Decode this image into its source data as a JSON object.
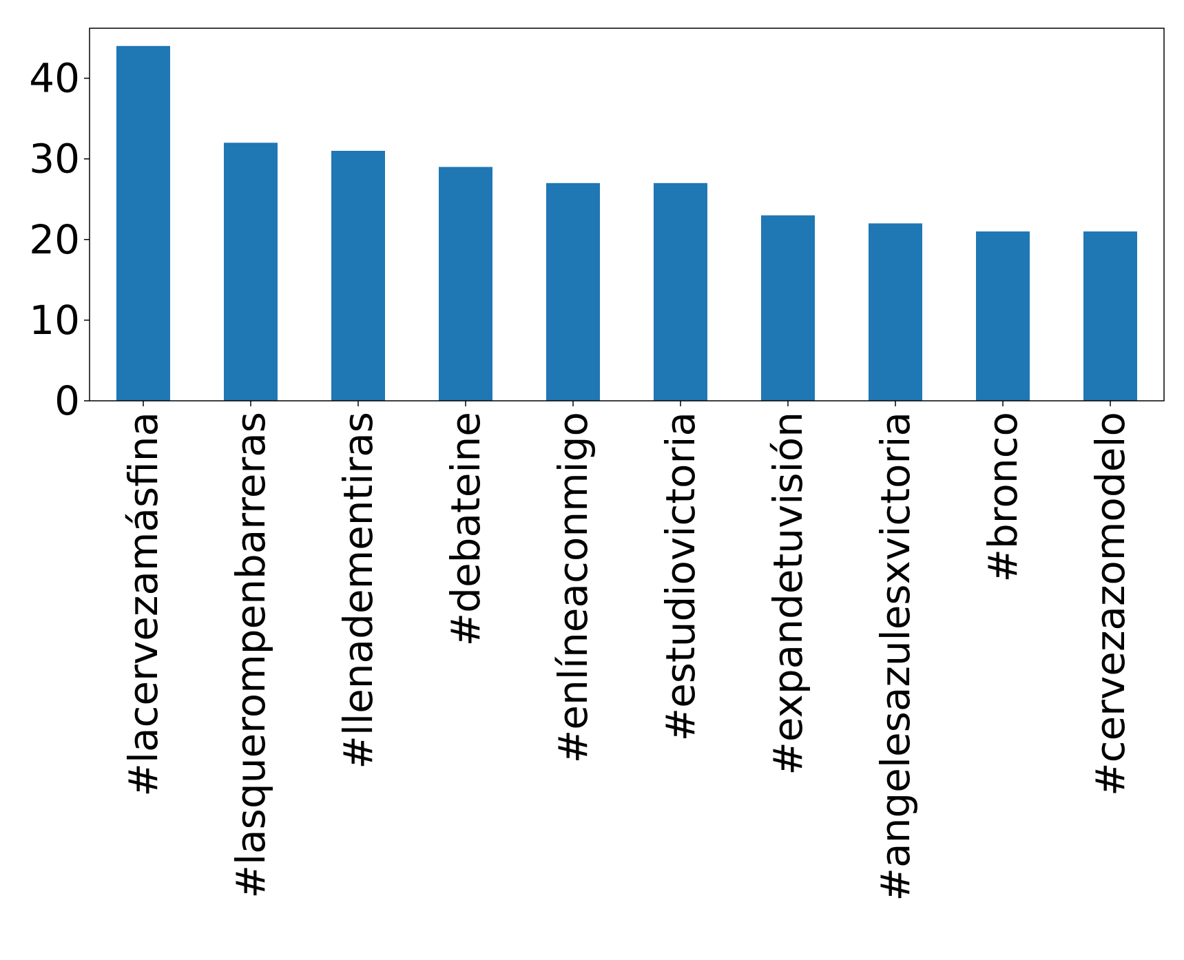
{
  "chart_data": {
    "type": "bar",
    "categories": [
      "#lacervezamásfina",
      "#lasquerompenbarreras",
      "#llenadementiras",
      "#debateine",
      "#enlíneaconmigo",
      "#estudiovictoria",
      "#expandetuvisión",
      "#angelesazulesxvictoria",
      "#bronco",
      "#cervezazomodelo"
    ],
    "values": [
      44,
      32,
      31,
      29,
      27,
      27,
      23,
      22,
      21,
      21
    ],
    "yticks": [
      "0",
      "10",
      "20",
      "30",
      "40"
    ],
    "ylim": [
      0,
      46.2
    ],
    "bar_color": "#1f77b4",
    "grid": false,
    "legend": "none"
  }
}
